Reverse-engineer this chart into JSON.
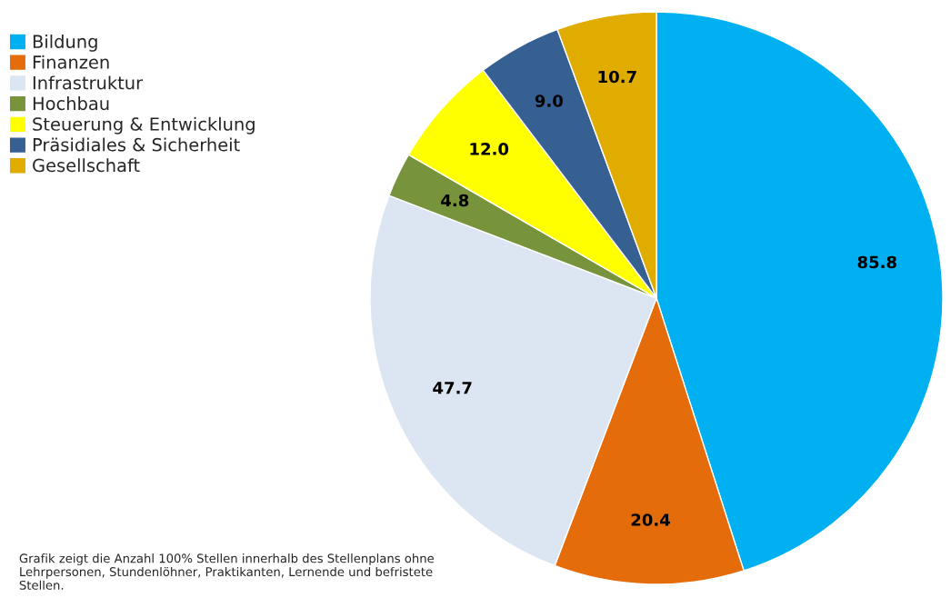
{
  "chart_data": {
    "type": "pie",
    "categories": [
      "Bildung",
      "Finanzen",
      "Infrastruktur",
      "Hochbau",
      "Steuerung & Entwicklung",
      "Präsidiales & Sicherheit",
      "Gesellschaft"
    ],
    "values": [
      85.8,
      20.4,
      47.7,
      4.8,
      12.0,
      9.0,
      10.7
    ],
    "colors": [
      "#00b0f0",
      "#e46c0a",
      "#dce6f2",
      "#77933c",
      "#ffff00",
      "#376092",
      "#e0ac00"
    ],
    "value_labels": [
      "85.8",
      "20.4",
      "47.7",
      "4.8",
      "12.0",
      "9.0",
      "10.7"
    ],
    "legend": "top left",
    "annotations": [
      "Grafik zeigt die Anzahl 100% Stellen innerhalb des Stellenplans ohne Lehrpersonen, Stundenlöhner, Praktikanten, Lernende und befristete Stellen."
    ]
  }
}
